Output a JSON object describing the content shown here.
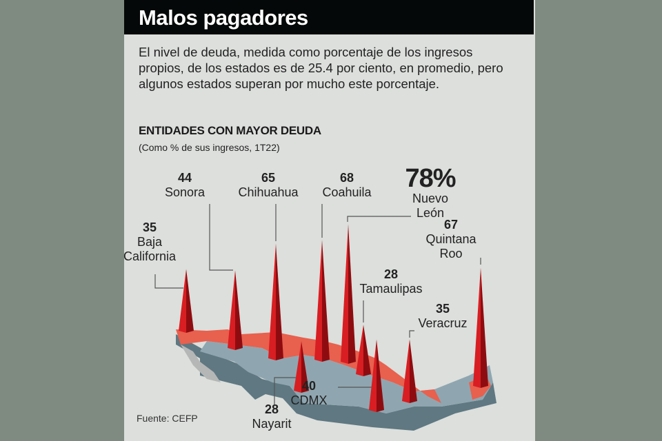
{
  "header": {
    "title": "Malos pagadores"
  },
  "intro": "El nivel de deuda, medida como porcentaje de los ingresos propios, de los estados es de 25.4 por ciento, en promedio, pero algunos estados superan por mucho este porcentaje.",
  "source": "Fuente: CEFP",
  "colors": {
    "spike": "#c0141a",
    "north_states": "#e8604e",
    "south_states": "#8fa6b0",
    "background": "#dcdfdc"
  },
  "chart_data": {
    "type": "bar",
    "title": "ENTIDADES CON MAYOR DEUDA",
    "subtitle": "(Como % de sus ingresos, 1T22)",
    "categories": [
      "Baja California",
      "Sonora",
      "Chihuahua",
      "Coahuila",
      "Nuevo León",
      "Tamaulipas",
      "Nayarit",
      "CDMX",
      "Veracruz",
      "Quintana Roo"
    ],
    "values": [
      35,
      44,
      65,
      68,
      78,
      28,
      28,
      40,
      35,
      67
    ],
    "value_labels": [
      "35",
      "44",
      "65",
      "68",
      "78%",
      "28",
      "28",
      "40",
      "35",
      "67"
    ],
    "name_lines": [
      [
        "Baja",
        "California"
      ],
      [
        "Sonora"
      ],
      [
        "Chihuahua"
      ],
      [
        "Coahuila"
      ],
      [
        "Nuevo",
        "León"
      ],
      [
        "Tamaulipas"
      ],
      [
        "Nayarit"
      ],
      [
        "CDMX"
      ],
      [
        "Veracruz"
      ],
      [
        "Quintana",
        "Roo"
      ]
    ]
  }
}
